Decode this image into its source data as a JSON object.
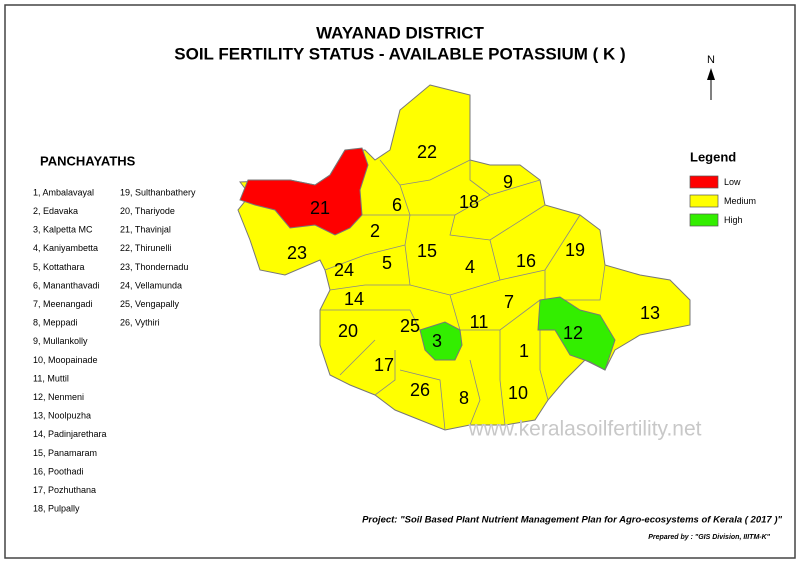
{
  "title": [
    "WAYANAD DISTRICT",
    "SOIL FERTILITY STATUS - AVAILABLE POTASSIUM ( K )"
  ],
  "north": "N",
  "panchayaths": {
    "heading": "PANCHAYATHS",
    "items": [
      "1, Ambalavayal",
      "2, Edavaka",
      "3, Kalpetta MC",
      "4, Kaniyambetta",
      "5, Kottathara",
      "6, Mananthavadi",
      "7, Meenangadi",
      "8, Meppadi",
      "9, Mullankolly",
      "10, Moopainade",
      "11, Muttil",
      "12, Nenmeni",
      "13, Noolpuzha",
      "14, Padinjarethara",
      "15, Panamaram",
      "16, Poothadi",
      "17, Pozhuthana",
      "18, Pulpally",
      "19, Sulthanbathery",
      "20, Thariyode",
      "21, Thavinjal",
      "22, Thirunelli",
      "23, Thondernadu",
      "24, Vellamunda",
      "25, Vengapally",
      "26, Vythiri"
    ]
  },
  "legend": {
    "title": "Legend",
    "items": [
      {
        "label": "Low",
        "color": "#ff0000"
      },
      {
        "label": "Medium",
        "color": "#ffff00"
      },
      {
        "label": "High",
        "color": "#33ee00"
      }
    ]
  },
  "regions": [
    {
      "label": "22",
      "color": "#ffff00"
    },
    {
      "label": "9",
      "color": "#ffff00"
    },
    {
      "label": "18",
      "color": "#ffff00"
    },
    {
      "label": "6",
      "color": "#ffff00"
    },
    {
      "label": "21",
      "color": "#ff0000"
    },
    {
      "label": "2",
      "color": "#ffff00"
    },
    {
      "label": "23",
      "color": "#ffff00"
    },
    {
      "label": "15",
      "color": "#ffff00"
    },
    {
      "label": "19",
      "color": "#ffff00"
    },
    {
      "label": "16",
      "color": "#ffff00"
    },
    {
      "label": "4",
      "color": "#ffff00"
    },
    {
      "label": "5",
      "color": "#ffff00"
    },
    {
      "label": "24",
      "color": "#ffff00"
    },
    {
      "label": "14",
      "color": "#ffff00"
    },
    {
      "label": "7",
      "color": "#ffff00"
    },
    {
      "label": "13",
      "color": "#ffff00"
    },
    {
      "label": "20",
      "color": "#ffff00"
    },
    {
      "label": "25",
      "color": "#ffff00"
    },
    {
      "label": "11",
      "color": "#ffff00"
    },
    {
      "label": "12",
      "color": "#33ee00"
    },
    {
      "label": "3",
      "color": "#33ee00"
    },
    {
      "label": "1",
      "color": "#ffff00"
    },
    {
      "label": "17",
      "color": "#ffff00"
    },
    {
      "label": "26",
      "color": "#ffff00"
    },
    {
      "label": "8",
      "color": "#ffff00"
    },
    {
      "label": "10",
      "color": "#ffff00"
    }
  ],
  "watermark": "www.keralasoilfertility.net",
  "project": "Project: \"Soil Based Plant Nutrient Management Plan for Agro-ecosystems of Kerala ( 2017 )\"",
  "prepared": "Prepared by : \"GIS Division, IIITM-K\""
}
